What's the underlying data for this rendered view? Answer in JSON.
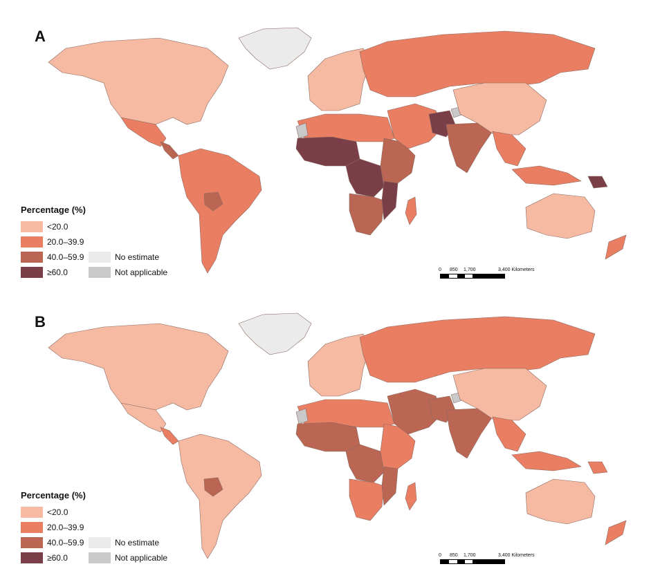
{
  "colors": {
    "lt20": "#f6b9a2",
    "20_40": "#ea7e62",
    "40_60": "#bb6652",
    "ge60": "#7a3e48",
    "no_estimate": "#ebebeb",
    "not_applicable": "#c9c9c9"
  },
  "panels": [
    {
      "label": "A",
      "legend": {
        "title": "Percentage (%)",
        "items": [
          "<20.0",
          "20.0–39.9",
          "40.0–59.9",
          "≥60.0"
        ],
        "extra": [
          "No estimate",
          "Not applicable"
        ]
      },
      "scale": {
        "ticks": [
          "0",
          "850",
          "1,700",
          "3,400 Kilometers"
        ]
      },
      "regions": {
        "north_america": "lt20",
        "greenland": "no_estimate",
        "mexico": "20_40",
        "central_america": "40_60",
        "south_america": "20_40",
        "bolivia": "40_60",
        "europe": "lt20",
        "russia": "20_40",
        "north_africa": "20_40",
        "west_africa": "ge60",
        "central_africa": "ge60",
        "east_africa": "40_60",
        "southern_africa": "40_60",
        "mozambique": "ge60",
        "madagascar": "20_40",
        "middle_east": "20_40",
        "pakistan": "ge60",
        "india": "40_60",
        "china": "lt20",
        "southeast_asia": "20_40",
        "indonesia": "20_40",
        "australia": "lt20",
        "new_zealand": "20_40",
        "png": "ge60",
        "western_sahara": "not_applicable",
        "kashmir": "not_applicable"
      }
    },
    {
      "label": "B",
      "legend": {
        "title": "Percentage (%)",
        "items": [
          "<20.0",
          "20.0–39.9",
          "40.0–59.9",
          "≥60.0"
        ],
        "extra": [
          "No estimate",
          "Not applicable"
        ]
      },
      "scale": {
        "ticks": [
          "0",
          "850",
          "1,700",
          "3,400 Kilometers"
        ]
      },
      "regions": {
        "north_america": "lt20",
        "greenland": "no_estimate",
        "mexico": "lt20",
        "central_america": "20_40",
        "south_america": "lt20",
        "bolivia": "40_60",
        "europe": "lt20",
        "russia": "20_40",
        "north_africa": "20_40",
        "west_africa": "40_60",
        "central_africa": "40_60",
        "east_africa": "20_40",
        "southern_africa": "20_40",
        "mozambique": "40_60",
        "madagascar": "20_40",
        "middle_east": "40_60",
        "pakistan": "40_60",
        "india": "40_60",
        "china": "lt20",
        "southeast_asia": "20_40",
        "indonesia": "20_40",
        "australia": "lt20",
        "new_zealand": "20_40",
        "png": "20_40",
        "western_sahara": "not_applicable",
        "kashmir": "not_applicable"
      }
    }
  ]
}
